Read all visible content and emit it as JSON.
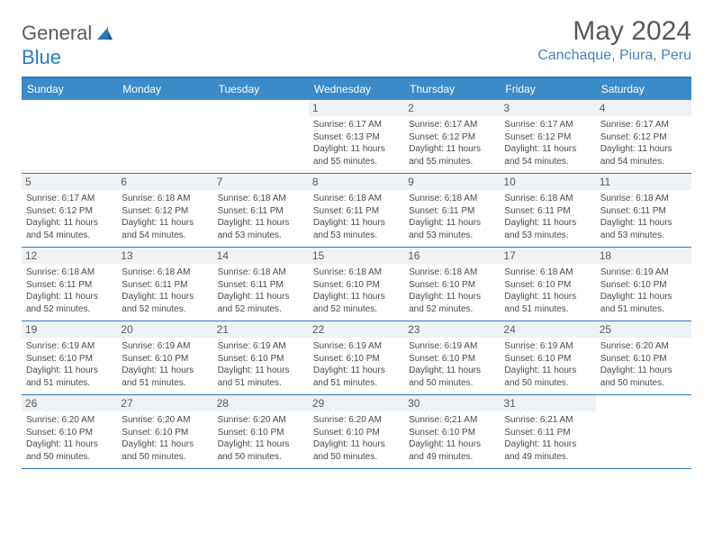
{
  "brand": {
    "word1": "General",
    "word2": "Blue"
  },
  "title": "May 2024",
  "location": "Canchaque, Piura, Peru",
  "colors": {
    "header_bg": "#3b8bc9",
    "border": "#2a7ac0",
    "daynum_bg": "#eef2f5",
    "location_color": "#4a81bb",
    "title_color": "#595959",
    "text_color": "#4a4a4a"
  },
  "days_of_week": [
    "Sunday",
    "Monday",
    "Tuesday",
    "Wednesday",
    "Thursday",
    "Friday",
    "Saturday"
  ],
  "weeks": [
    [
      {
        "n": "",
        "empty": true
      },
      {
        "n": "",
        "empty": true
      },
      {
        "n": "",
        "empty": true
      },
      {
        "n": "1",
        "sr": "6:17 AM",
        "ss": "6:13 PM",
        "dl": "11 hours and 55 minutes."
      },
      {
        "n": "2",
        "sr": "6:17 AM",
        "ss": "6:12 PM",
        "dl": "11 hours and 55 minutes."
      },
      {
        "n": "3",
        "sr": "6:17 AM",
        "ss": "6:12 PM",
        "dl": "11 hours and 54 minutes."
      },
      {
        "n": "4",
        "sr": "6:17 AM",
        "ss": "6:12 PM",
        "dl": "11 hours and 54 minutes."
      }
    ],
    [
      {
        "n": "5",
        "sr": "6:17 AM",
        "ss": "6:12 PM",
        "dl": "11 hours and 54 minutes."
      },
      {
        "n": "6",
        "sr": "6:18 AM",
        "ss": "6:12 PM",
        "dl": "11 hours and 54 minutes."
      },
      {
        "n": "7",
        "sr": "6:18 AM",
        "ss": "6:11 PM",
        "dl": "11 hours and 53 minutes."
      },
      {
        "n": "8",
        "sr": "6:18 AM",
        "ss": "6:11 PM",
        "dl": "11 hours and 53 minutes."
      },
      {
        "n": "9",
        "sr": "6:18 AM",
        "ss": "6:11 PM",
        "dl": "11 hours and 53 minutes."
      },
      {
        "n": "10",
        "sr": "6:18 AM",
        "ss": "6:11 PM",
        "dl": "11 hours and 53 minutes."
      },
      {
        "n": "11",
        "sr": "6:18 AM",
        "ss": "6:11 PM",
        "dl": "11 hours and 53 minutes."
      }
    ],
    [
      {
        "n": "12",
        "sr": "6:18 AM",
        "ss": "6:11 PM",
        "dl": "11 hours and 52 minutes."
      },
      {
        "n": "13",
        "sr": "6:18 AM",
        "ss": "6:11 PM",
        "dl": "11 hours and 52 minutes."
      },
      {
        "n": "14",
        "sr": "6:18 AM",
        "ss": "6:11 PM",
        "dl": "11 hours and 52 minutes."
      },
      {
        "n": "15",
        "sr": "6:18 AM",
        "ss": "6:10 PM",
        "dl": "11 hours and 52 minutes."
      },
      {
        "n": "16",
        "sr": "6:18 AM",
        "ss": "6:10 PM",
        "dl": "11 hours and 52 minutes."
      },
      {
        "n": "17",
        "sr": "6:18 AM",
        "ss": "6:10 PM",
        "dl": "11 hours and 51 minutes."
      },
      {
        "n": "18",
        "sr": "6:19 AM",
        "ss": "6:10 PM",
        "dl": "11 hours and 51 minutes."
      }
    ],
    [
      {
        "n": "19",
        "sr": "6:19 AM",
        "ss": "6:10 PM",
        "dl": "11 hours and 51 minutes."
      },
      {
        "n": "20",
        "sr": "6:19 AM",
        "ss": "6:10 PM",
        "dl": "11 hours and 51 minutes."
      },
      {
        "n": "21",
        "sr": "6:19 AM",
        "ss": "6:10 PM",
        "dl": "11 hours and 51 minutes."
      },
      {
        "n": "22",
        "sr": "6:19 AM",
        "ss": "6:10 PM",
        "dl": "11 hours and 51 minutes."
      },
      {
        "n": "23",
        "sr": "6:19 AM",
        "ss": "6:10 PM",
        "dl": "11 hours and 50 minutes."
      },
      {
        "n": "24",
        "sr": "6:19 AM",
        "ss": "6:10 PM",
        "dl": "11 hours and 50 minutes."
      },
      {
        "n": "25",
        "sr": "6:20 AM",
        "ss": "6:10 PM",
        "dl": "11 hours and 50 minutes."
      }
    ],
    [
      {
        "n": "26",
        "sr": "6:20 AM",
        "ss": "6:10 PM",
        "dl": "11 hours and 50 minutes."
      },
      {
        "n": "27",
        "sr": "6:20 AM",
        "ss": "6:10 PM",
        "dl": "11 hours and 50 minutes."
      },
      {
        "n": "28",
        "sr": "6:20 AM",
        "ss": "6:10 PM",
        "dl": "11 hours and 50 minutes."
      },
      {
        "n": "29",
        "sr": "6:20 AM",
        "ss": "6:10 PM",
        "dl": "11 hours and 50 minutes."
      },
      {
        "n": "30",
        "sr": "6:21 AM",
        "ss": "6:10 PM",
        "dl": "11 hours and 49 minutes."
      },
      {
        "n": "31",
        "sr": "6:21 AM",
        "ss": "6:11 PM",
        "dl": "11 hours and 49 minutes."
      },
      {
        "n": "",
        "empty": true
      }
    ]
  ],
  "labels": {
    "sunrise": "Sunrise:",
    "sunset": "Sunset:",
    "daylight": "Daylight:"
  }
}
